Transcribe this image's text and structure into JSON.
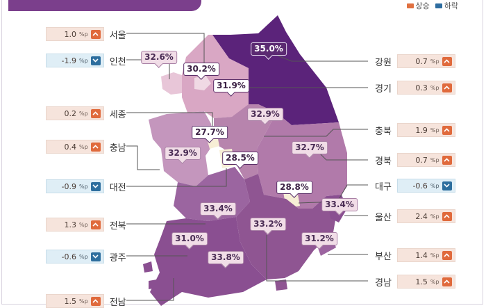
{
  "legend": {
    "increase_label": "상승",
    "decrease_label": "하락",
    "increase_color": "#e06a3c",
    "decrease_color": "#2d6e9e"
  },
  "unit": "%p",
  "left_column": [
    {
      "region": "서울",
      "change": "1.0",
      "direction": "up"
    },
    {
      "region": "인천",
      "change": "-1.9",
      "direction": "down"
    },
    {
      "region": "세종",
      "change": "0.2",
      "direction": "up"
    },
    {
      "region": "충남",
      "change": "0.4",
      "direction": "up"
    },
    {
      "region": "대전",
      "change": "-0.9",
      "direction": "down"
    },
    {
      "region": "전북",
      "change": "1.3",
      "direction": "up"
    },
    {
      "region": "광주",
      "change": "-0.6",
      "direction": "down"
    },
    {
      "region": "전남",
      "change": "1.5",
      "direction": "up"
    }
  ],
  "right_column": [
    {
      "region": "강원",
      "change": "0.7",
      "direction": "up"
    },
    {
      "region": "경기",
      "change": "0.3",
      "direction": "up"
    },
    {
      "region": "충북",
      "change": "1.9",
      "direction": "up"
    },
    {
      "region": "경북",
      "change": "0.7",
      "direction": "up"
    },
    {
      "region": "대구",
      "change": "-0.6",
      "direction": "down"
    },
    {
      "region": "울산",
      "change": "2.4",
      "direction": "up"
    },
    {
      "region": "부산",
      "change": "1.4",
      "direction": "up"
    },
    {
      "region": "경남",
      "change": "1.5",
      "direction": "up"
    }
  ],
  "map_values": {
    "강원": "35.0%",
    "인천": "32.6%",
    "서울": "30.2%",
    "경기": "31.9%",
    "충북": "32.9%",
    "세종": "27.7%",
    "충남": "32.9%",
    "대전": "28.5%",
    "경북": "32.7%",
    "대구": "28.8%",
    "울산": "33.4%",
    "전북": "33.4%",
    "경남": "33.2%",
    "광주": "31.0%",
    "부산": "31.2%",
    "전남": "33.8%"
  },
  "colors": {
    "gangwon": "#5b237a",
    "gyeonggi": "#d8a6c3",
    "seoul_incheon": "#e7c4d7",
    "central": "#b784ad",
    "gyeongbuk": "#b17aaa",
    "south": "#8f5592",
    "jeonnam": "#8a4f91",
    "metro_light": "#f7eed6"
  }
}
